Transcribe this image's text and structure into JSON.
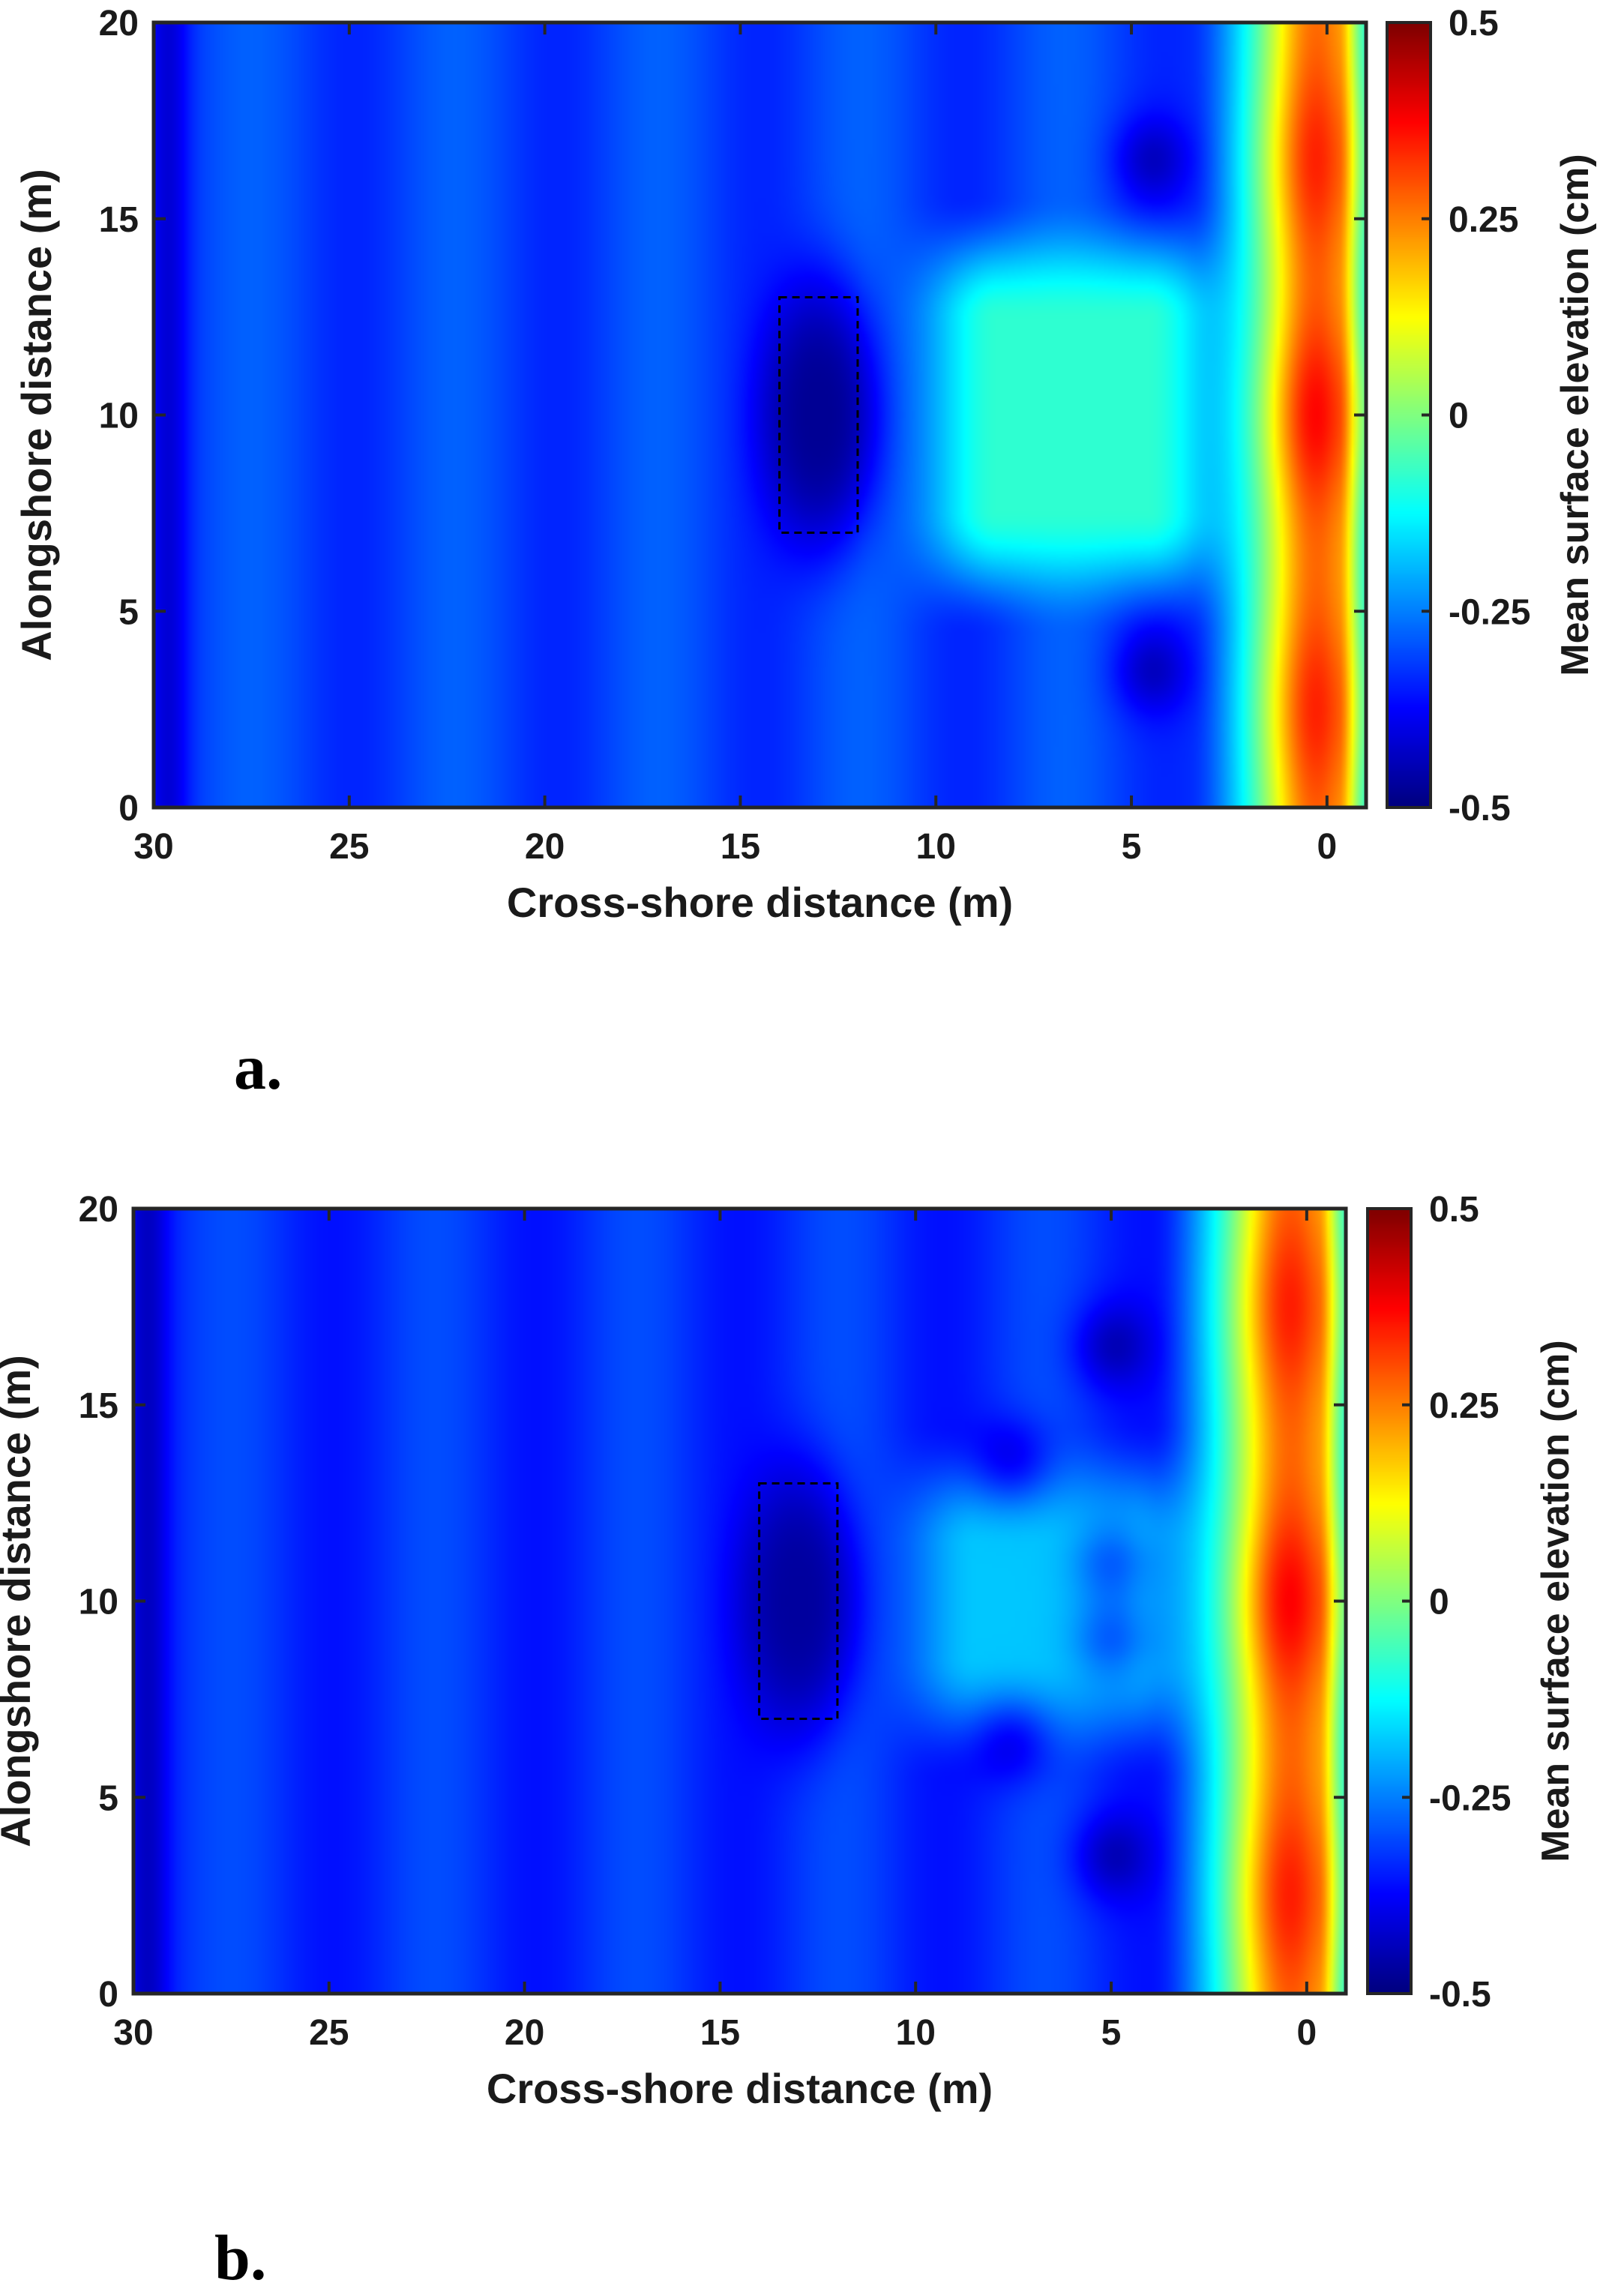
{
  "chart_data": [
    {
      "type": "heatmap",
      "panel_label": "a.",
      "xlabel": "Cross-shore distance (m)",
      "ylabel": "Alongshore distance (m)",
      "colorbar_label": "Mean surface elevation (cm)",
      "xlim": [
        30,
        -1
      ],
      "x_reversed": true,
      "ylim": [
        0,
        20
      ],
      "clim": [
        -0.5,
        0.5
      ],
      "colormap": "jet",
      "x_ticks": [
        30,
        25,
        20,
        15,
        10,
        5,
        0
      ],
      "x_tick_labels": [
        "30",
        "25",
        "20",
        "15",
        "10",
        "5",
        "0"
      ],
      "y_ticks": [
        0,
        5,
        10,
        15,
        20
      ],
      "y_tick_labels": [
        "0",
        "5",
        "10",
        "15",
        "20"
      ],
      "colorbar_ticks": [
        -0.5,
        -0.25,
        0,
        0.25,
        0.5
      ],
      "colorbar_tick_labels": [
        "-0.5",
        "-0.25",
        "0",
        "0.25",
        "0.5"
      ],
      "structure_outline": {
        "x_range": [
          12,
          14
        ],
        "y_range": [
          7,
          13
        ],
        "style": "dashed"
      },
      "field": {
        "offshore_level": -0.31,
        "offshore_ripple_period_m": 5.2,
        "offshore_ripple_amplitude": 0.03,
        "structure_center": [
          13,
          10
        ],
        "structure_trough": -0.48,
        "lee_region_level": -0.08,
        "lee_region_x_range": [
          3,
          10
        ],
        "lee_region_y_range": [
          6,
          14
        ],
        "shoreline_setup_peak": 0.38,
        "shoreline_peak_x": 0.6,
        "setup_maxima_y": [
          10,
          16.5,
          2.5
        ],
        "shoreline_rise_start_x": 3.5,
        "nearshore_low_spots": [
          [
            4.5,
            3.5
          ],
          [
            4.5,
            16.5
          ]
        ]
      }
    },
    {
      "type": "heatmap",
      "panel_label": "b.",
      "xlabel": "Cross-shore distance (m)",
      "ylabel": "Alongshore distance (m)",
      "colorbar_label": "Mean surface elevation (cm)",
      "xlim": [
        30,
        -1
      ],
      "x_reversed": true,
      "ylim": [
        0,
        20
      ],
      "clim": [
        -0.5,
        0.5
      ],
      "colormap": "jet",
      "x_ticks": [
        30,
        25,
        20,
        15,
        10,
        5,
        0
      ],
      "x_tick_labels": [
        "30",
        "25",
        "20",
        "15",
        "10",
        "5",
        "0"
      ],
      "y_ticks": [
        0,
        5,
        10,
        15,
        20
      ],
      "y_tick_labels": [
        "0",
        "5",
        "10",
        "15",
        "20"
      ],
      "colorbar_ticks": [
        -0.5,
        -0.25,
        0,
        0.25,
        0.5
      ],
      "colorbar_tick_labels": [
        "-0.5",
        "-0.25",
        "0",
        "0.25",
        "0.5"
      ],
      "structure_outline": {
        "x_range": [
          12,
          14
        ],
        "y_range": [
          7,
          13
        ],
        "style": "dashed"
      },
      "field": {
        "offshore_level": -0.33,
        "offshore_ripple_period_m": 5.2,
        "offshore_ripple_amplitude": 0.03,
        "structure_center": [
          13,
          10
        ],
        "structure_trough": -0.47,
        "lee_region_level": -0.18,
        "lee_region_x_range": [
          3,
          10
        ],
        "lee_region_y_range": [
          7,
          13
        ],
        "shoreline_setup_peak": 0.4,
        "shoreline_peak_x": 0.8,
        "setup_maxima_y": [
          10,
          17.5,
          2.5
        ],
        "shoreline_rise_start_x": 4,
        "nearshore_low_spots": [
          [
            5,
            3.5
          ],
          [
            5,
            9
          ],
          [
            5,
            11
          ],
          [
            5,
            16.5
          ],
          [
            7.5,
            13.5
          ],
          [
            7.5,
            6.5
          ]
        ]
      }
    }
  ]
}
